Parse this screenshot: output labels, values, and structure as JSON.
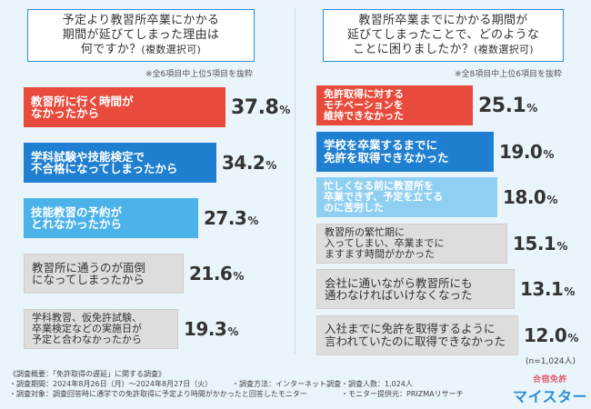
{
  "chart_data": [
    {
      "type": "bar",
      "title": "予定より教習所卒業にかかる期間が延びてしまった理由は何ですか？（複数選択可）",
      "note": "※全6項目中上位5項目を抜粋",
      "categories": [
        "教習所に行く時間がなかったから",
        "学科試験や技能検定で不合格になってしまったから",
        "技能教習の予約がとれなかったから",
        "教習所に通うのが面倒になってしまったから",
        "学科教習、仮免許試験、卒業検定などの実施日が予定と合わなかったから"
      ],
      "values": [
        37.8,
        34.2,
        27.3,
        21.6,
        19.3
      ],
      "unit": "%"
    },
    {
      "type": "bar",
      "title": "教習所卒業までにかかる期間が延びてしまったことで、どのようなことに困りましたか？（複数選択可）",
      "note": "※全8項目中上位6項目を抜粋",
      "categories": [
        "免許取得に対するモチベーションを維持できなかった",
        "学校を卒業するまでに免許を取得できなかった",
        "忙しくなる前に教習所を卒業できず、予定を立てるのに苦労した",
        "教習所の繁忙期に入ってしまい、卒業までにますます時間がかかった",
        "会社に通いながら教習所にも通わなければいけなくなった",
        "入社までに免許を取得するように言われていたのに取得できなかった"
      ],
      "values": [
        25.1,
        19.0,
        18.0,
        15.1,
        13.1,
        12.0
      ],
      "unit": "%",
      "sample_size": "(n=1,024人)"
    }
  ],
  "left": {
    "q_lines": [
      "予定より教習所卒業にかかる",
      "期間が延びてしまった理由は"
    ],
    "q_line3": "何ですか？",
    "q_suffix": "(複数選択可)",
    "bar_lines": [
      [
        "教習所に行く時間が",
        "なかったから"
      ],
      [
        "学科試験や技能検定で",
        "不合格になってしまったから"
      ],
      [
        "技能教習の予約が",
        "とれなかったから"
      ],
      [
        "教習所に通うのが面倒",
        "になってしまったから"
      ],
      [
        "学科教習、仮免許試験、",
        "卒業検定などの実施日が",
        "予定と合わなかったから"
      ]
    ]
  },
  "right": {
    "q_lines": [
      "教習所卒業までにかかる期間が",
      "延びてしまったことで、どのような"
    ],
    "q_line3": "ことに困りましたか？",
    "q_suffix": "(複数選択可)",
    "bar_lines": [
      [
        "免許取得に対する",
        "モチベーションを",
        "維持できなかった"
      ],
      [
        "学校を卒業するまでに",
        "免許を取得できなかった"
      ],
      [
        "忙しくなる前に教習所を",
        "卒業できず、予定を立てる",
        "のに苦労した"
      ],
      [
        "教習所の繁忙期に",
        "入ってしまい、卒業までに",
        "ますます時間がかかった"
      ],
      [
        "会社に通いながら教習所にも",
        "通わなければいけなくなった"
      ],
      [
        "入社までに免許を取得するように",
        "言われていたのに取得できなかった"
      ]
    ]
  },
  "footer": {
    "l1": "《調査概要：「免許取得の遅延」に関する調査》",
    "l2a": "・調査期間：2024年8月26日（月）〜2024年8月27日（火）",
    "l2b": "・調査方法：インターネット調査",
    "l2c": "・調査人数：1,024人",
    "l3a": "・調査対象：調査回答時に通学での免許取得に予定より時間がかかったと回答したモニター",
    "l3b": "・モニター提供元：PRIZMAリサーチ"
  },
  "logo": {
    "top": "合宿免許",
    "main": "マイスター"
  },
  "colors": {
    "red": "#e84b3c",
    "blue_dark": "#1f7fd0",
    "blue_light": "#4bb3ea",
    "blue_pale": "#8fd0f2",
    "gray": "#dddddd",
    "gray_border": "#cfcfcf",
    "accent_line": "#2d8ed8"
  }
}
